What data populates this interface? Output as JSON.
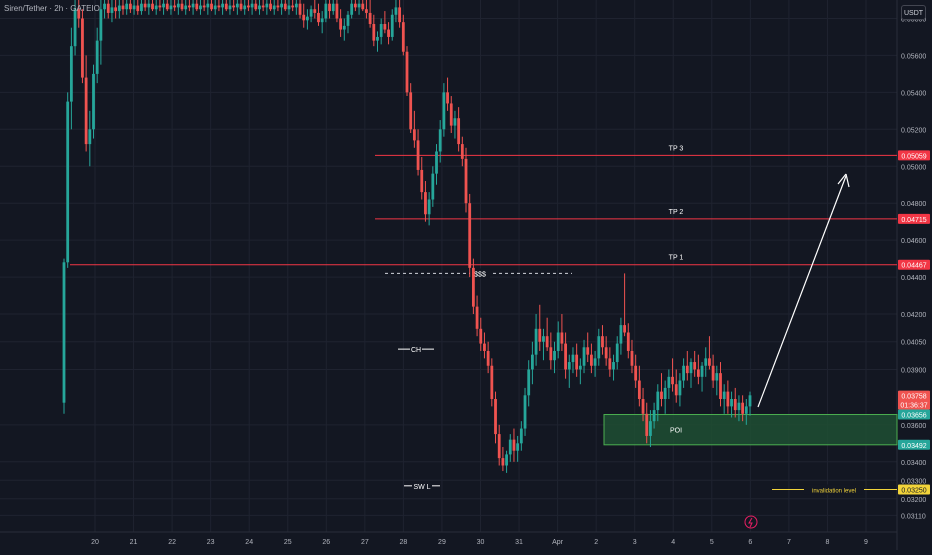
{
  "header": {
    "symbol_title": "Siren/Tether · 2h · GATEIO",
    "currency_label": "USDT"
  },
  "colors": {
    "background": "#131722",
    "grid": "#1f2330",
    "up": "#26a69a",
    "down": "#ef5350",
    "target_line": "#f23645",
    "poi_zone": "#1f4f32",
    "poi_border": "#4caf50",
    "invalidation": "#f2d43a",
    "axis_text": "#b2b5be",
    "arrow": "#ffffff"
  },
  "chart_data": {
    "type": "candlestick",
    "timeframe": "2h",
    "y_axis": {
      "tick_labels": [
        "0.05800",
        "0.05600",
        "0.05400",
        "0.05200",
        "0.05000",
        "0.04800",
        "0.04600",
        "0.04400",
        "0.04200",
        "0.04050",
        "0.03900",
        "0.03600",
        "0.03400",
        "0.03300",
        "0.03200",
        "0.03110"
      ],
      "range": [
        0.0302,
        0.059
      ]
    },
    "x_axis": {
      "tick_labels": [
        "20",
        "21",
        "22",
        "23",
        "24",
        "25",
        "26",
        "27",
        "28",
        "29",
        "30",
        "31",
        "Apr",
        "2",
        "3",
        "4",
        "5",
        "6",
        "7",
        "8",
        "9"
      ]
    },
    "price_levels": [
      {
        "label": "TP 3",
        "price": 0.05059,
        "badge": "0.05059"
      },
      {
        "label": "TP 2",
        "price": 0.04715,
        "badge": "0.04715"
      },
      {
        "label": "TP 1",
        "price": 0.04467,
        "badge": "0.04467"
      }
    ],
    "liquidity": {
      "label": "$$$",
      "price": 0.0442
    },
    "annotations": [
      {
        "label": "CH",
        "price": 0.0401
      },
      {
        "label": "SW L",
        "price": 0.0327
      }
    ],
    "poi_zone": {
      "label": "POI",
      "top": 0.03656,
      "bottom": 0.03492,
      "top_badge": "0.03656",
      "bottom_badge": "0.03492"
    },
    "invalidation": {
      "label": "invalidation level",
      "price": 0.0325,
      "badge": "0.03250"
    },
    "current_price": {
      "price": 0.03758,
      "badge": "0.03758",
      "countdown": "01:36:37"
    },
    "candles": [
      [
        0.0372,
        0.045,
        0.0366,
        0.0448
      ],
      [
        0.0448,
        0.054,
        0.0445,
        0.0535
      ],
      [
        0.0535,
        0.0575,
        0.052,
        0.0565
      ],
      [
        0.0565,
        0.059,
        0.056,
        0.0585
      ],
      [
        0.0585,
        0.059,
        0.0575,
        0.058
      ],
      [
        0.058,
        0.0585,
        0.0545,
        0.0548
      ],
      [
        0.0548,
        0.056,
        0.0508,
        0.0512
      ],
      [
        0.0512,
        0.053,
        0.05,
        0.052
      ],
      [
        0.052,
        0.0555,
        0.0515,
        0.055
      ],
      [
        0.055,
        0.0575,
        0.0545,
        0.0568
      ],
      [
        0.0568,
        0.059,
        0.0555,
        0.0585
      ],
      [
        0.0585,
        0.059,
        0.058,
        0.0588
      ],
      [
        0.0588,
        0.059,
        0.058,
        0.0583
      ],
      [
        0.0583,
        0.059,
        0.0578,
        0.0586
      ],
      [
        0.0586,
        0.059,
        0.058,
        0.0584
      ],
      [
        0.0584,
        0.059,
        0.058,
        0.0587
      ],
      [
        0.0587,
        0.059,
        0.0582,
        0.0585
      ],
      [
        0.0585,
        0.059,
        0.0582,
        0.0588
      ],
      [
        0.0588,
        0.059,
        0.0583,
        0.0585
      ],
      [
        0.0585,
        0.059,
        0.0582,
        0.0587
      ],
      [
        0.0587,
        0.059,
        0.0582,
        0.0584
      ],
      [
        0.0584,
        0.059,
        0.0582,
        0.0588
      ],
      [
        0.0588,
        0.059,
        0.0584,
        0.0586
      ],
      [
        0.0586,
        0.059,
        0.0582,
        0.0588
      ],
      [
        0.0588,
        0.059,
        0.0584,
        0.0585
      ],
      [
        0.0585,
        0.059,
        0.0582,
        0.0587
      ],
      [
        0.0587,
        0.059,
        0.0584,
        0.0586
      ],
      [
        0.0586,
        0.059,
        0.0582,
        0.0588
      ],
      [
        0.0588,
        0.059,
        0.0584,
        0.0585
      ],
      [
        0.0585,
        0.059,
        0.0582,
        0.0587
      ],
      [
        0.0587,
        0.059,
        0.0584,
        0.0586
      ],
      [
        0.0586,
        0.059,
        0.0582,
        0.0588
      ],
      [
        0.0588,
        0.059,
        0.0584,
        0.0585
      ],
      [
        0.0585,
        0.059,
        0.0582,
        0.0587
      ],
      [
        0.0587,
        0.059,
        0.0584,
        0.0586
      ],
      [
        0.0586,
        0.059,
        0.0582,
        0.0588
      ],
      [
        0.0588,
        0.059,
        0.0584,
        0.0585
      ],
      [
        0.0585,
        0.059,
        0.0582,
        0.0587
      ],
      [
        0.0587,
        0.059,
        0.0584,
        0.0586
      ],
      [
        0.0586,
        0.059,
        0.0582,
        0.0588
      ],
      [
        0.0588,
        0.059,
        0.0584,
        0.0585
      ],
      [
        0.0585,
        0.059,
        0.0582,
        0.0587
      ],
      [
        0.0587,
        0.059,
        0.0584,
        0.0586
      ],
      [
        0.0586,
        0.059,
        0.0582,
        0.0588
      ],
      [
        0.0588,
        0.059,
        0.0584,
        0.0585
      ],
      [
        0.0585,
        0.059,
        0.0582,
        0.0587
      ],
      [
        0.0587,
        0.059,
        0.0584,
        0.0586
      ],
      [
        0.0586,
        0.059,
        0.0582,
        0.0588
      ],
      [
        0.0588,
        0.059,
        0.0584,
        0.0585
      ],
      [
        0.0585,
        0.059,
        0.0582,
        0.0587
      ],
      [
        0.0587,
        0.059,
        0.0584,
        0.0586
      ],
      [
        0.0586,
        0.059,
        0.0582,
        0.0588
      ],
      [
        0.0588,
        0.059,
        0.0584,
        0.0585
      ],
      [
        0.0585,
        0.059,
        0.0582,
        0.0587
      ],
      [
        0.0587,
        0.059,
        0.0584,
        0.0586
      ],
      [
        0.0586,
        0.059,
        0.0582,
        0.0588
      ],
      [
        0.0588,
        0.059,
        0.0584,
        0.0585
      ],
      [
        0.0585,
        0.059,
        0.0582,
        0.0587
      ],
      [
        0.0587,
        0.059,
        0.0584,
        0.0586
      ],
      [
        0.0586,
        0.059,
        0.0582,
        0.0588
      ],
      [
        0.0588,
        0.059,
        0.0584,
        0.0585
      ],
      [
        0.0585,
        0.059,
        0.0582,
        0.0587
      ],
      [
        0.0587,
        0.059,
        0.0584,
        0.0586
      ],
      [
        0.0586,
        0.059,
        0.0582,
        0.0588
      ],
      [
        0.0588,
        0.059,
        0.058,
        0.0582
      ],
      [
        0.0582,
        0.0588,
        0.0575,
        0.0579
      ],
      [
        0.0579,
        0.0585,
        0.0574,
        0.0581
      ],
      [
        0.0581,
        0.0587,
        0.0578,
        0.0585
      ],
      [
        0.0585,
        0.059,
        0.058,
        0.0583
      ],
      [
        0.0583,
        0.0588,
        0.0576,
        0.0578
      ],
      [
        0.0578,
        0.0584,
        0.0572,
        0.058
      ],
      [
        0.058,
        0.059,
        0.0578,
        0.0588
      ],
      [
        0.0588,
        0.059,
        0.058,
        0.0584
      ],
      [
        0.0584,
        0.059,
        0.0582,
        0.0588
      ],
      [
        0.0588,
        0.059,
        0.0578,
        0.058
      ],
      [
        0.058,
        0.0585,
        0.057,
        0.0574
      ],
      [
        0.0574,
        0.058,
        0.0568,
        0.0576
      ],
      [
        0.0576,
        0.0584,
        0.0572,
        0.0582
      ],
      [
        0.0582,
        0.059,
        0.058,
        0.0588
      ],
      [
        0.0588,
        0.059,
        0.0584,
        0.0586
      ],
      [
        0.0586,
        0.059,
        0.0582,
        0.0588
      ],
      [
        0.0588,
        0.059,
        0.0584,
        0.0585
      ],
      [
        0.0585,
        0.059,
        0.058,
        0.0583
      ],
      [
        0.0583,
        0.059,
        0.0575,
        0.0577
      ],
      [
        0.0577,
        0.0582,
        0.0565,
        0.0568
      ],
      [
        0.0568,
        0.0573,
        0.0562,
        0.057
      ],
      [
        0.057,
        0.058,
        0.0566,
        0.0577
      ],
      [
        0.0577,
        0.0584,
        0.0572,
        0.0574
      ],
      [
        0.0574,
        0.0578,
        0.0566,
        0.057
      ],
      [
        0.057,
        0.0585,
        0.0568,
        0.0582
      ],
      [
        0.0582,
        0.059,
        0.0578,
        0.0586
      ],
      [
        0.0586,
        0.059,
        0.0575,
        0.0578
      ],
      [
        0.0578,
        0.0582,
        0.056,
        0.0562
      ],
      [
        0.0562,
        0.0565,
        0.0538,
        0.054
      ],
      [
        0.054,
        0.0545,
        0.0518,
        0.052
      ],
      [
        0.052,
        0.053,
        0.051,
        0.0514
      ],
      [
        0.0514,
        0.052,
        0.0495,
        0.0498
      ],
      [
        0.0498,
        0.0505,
        0.0482,
        0.0486
      ],
      [
        0.0486,
        0.0492,
        0.047,
        0.0474
      ],
      [
        0.0474,
        0.0486,
        0.0468,
        0.0482
      ],
      [
        0.0482,
        0.05,
        0.0478,
        0.0496
      ],
      [
        0.0496,
        0.0512,
        0.049,
        0.0508
      ],
      [
        0.0508,
        0.0525,
        0.0502,
        0.052
      ],
      [
        0.052,
        0.0545,
        0.0516,
        0.054
      ],
      [
        0.054,
        0.0548,
        0.053,
        0.0534
      ],
      [
        0.0534,
        0.0538,
        0.0518,
        0.0522
      ],
      [
        0.0522,
        0.053,
        0.0515,
        0.0526
      ],
      [
        0.0526,
        0.0532,
        0.0508,
        0.0512
      ],
      [
        0.0512,
        0.0516,
        0.05,
        0.0504
      ],
      [
        0.0504,
        0.051,
        0.0475,
        0.048
      ],
      [
        0.048,
        0.0485,
        0.044,
        0.0445
      ],
      [
        0.0445,
        0.045,
        0.042,
        0.0424
      ],
      [
        0.0424,
        0.043,
        0.0408,
        0.0412
      ],
      [
        0.0412,
        0.0418,
        0.04,
        0.0404
      ],
      [
        0.0404,
        0.041,
        0.0396,
        0.04
      ],
      [
        0.04,
        0.0405,
        0.0388,
        0.0392
      ],
      [
        0.0392,
        0.0396,
        0.037,
        0.0374
      ],
      [
        0.0374,
        0.0378,
        0.035,
        0.0355
      ],
      [
        0.0355,
        0.036,
        0.0338,
        0.0342
      ],
      [
        0.0342,
        0.0348,
        0.0335,
        0.0338
      ],
      [
        0.0338,
        0.0346,
        0.0334,
        0.0344
      ],
      [
        0.0344,
        0.0355,
        0.034,
        0.0352
      ],
      [
        0.0352,
        0.0358,
        0.034,
        0.0346
      ],
      [
        0.0346,
        0.0354,
        0.034,
        0.035
      ],
      [
        0.035,
        0.0362,
        0.0346,
        0.0358
      ],
      [
        0.0358,
        0.038,
        0.0354,
        0.0376
      ],
      [
        0.0376,
        0.0395,
        0.037,
        0.039
      ],
      [
        0.039,
        0.0405,
        0.0382,
        0.0398
      ],
      [
        0.0398,
        0.042,
        0.0392,
        0.0412
      ],
      [
        0.0412,
        0.0425,
        0.04,
        0.0405
      ],
      [
        0.0405,
        0.0412,
        0.0395,
        0.0408
      ],
      [
        0.0408,
        0.0418,
        0.04,
        0.0402
      ],
      [
        0.0402,
        0.041,
        0.039,
        0.0395
      ],
      [
        0.0395,
        0.0405,
        0.0388,
        0.04
      ],
      [
        0.04,
        0.0416,
        0.0396,
        0.041
      ],
      [
        0.041,
        0.042,
        0.04,
        0.0404
      ],
      [
        0.0404,
        0.041,
        0.0385,
        0.039
      ],
      [
        0.039,
        0.0398,
        0.038,
        0.0394
      ],
      [
        0.0394,
        0.0402,
        0.0388,
        0.0398
      ],
      [
        0.0398,
        0.0404,
        0.0386,
        0.039
      ],
      [
        0.039,
        0.0396,
        0.0382,
        0.0392
      ],
      [
        0.0392,
        0.0406,
        0.0388,
        0.0402
      ],
      [
        0.0402,
        0.041,
        0.0394,
        0.0398
      ],
      [
        0.0398,
        0.0404,
        0.0388,
        0.0392
      ],
      [
        0.0392,
        0.04,
        0.0386,
        0.0396
      ],
      [
        0.0396,
        0.0412,
        0.0392,
        0.0408
      ],
      [
        0.0408,
        0.0414,
        0.0398,
        0.0402
      ],
      [
        0.0402,
        0.0408,
        0.0392,
        0.0396
      ],
      [
        0.0396,
        0.0402,
        0.0386,
        0.039
      ],
      [
        0.039,
        0.0398,
        0.0384,
        0.0394
      ],
      [
        0.0394,
        0.0408,
        0.039,
        0.0404
      ],
      [
        0.0404,
        0.0418,
        0.0398,
        0.0414
      ],
      [
        0.0414,
        0.0442,
        0.0408,
        0.041
      ],
      [
        0.041,
        0.0415,
        0.0396,
        0.04
      ],
      [
        0.04,
        0.0406,
        0.0388,
        0.0392
      ],
      [
        0.0392,
        0.0398,
        0.038,
        0.0384
      ],
      [
        0.0384,
        0.0392,
        0.037,
        0.0374
      ],
      [
        0.0374,
        0.038,
        0.0362,
        0.0366
      ],
      [
        0.0366,
        0.0372,
        0.035,
        0.0354
      ],
      [
        0.0354,
        0.0368,
        0.0348,
        0.0362
      ],
      [
        0.0362,
        0.0372,
        0.0358,
        0.0368
      ],
      [
        0.0368,
        0.0382,
        0.0362,
        0.0378
      ],
      [
        0.0378,
        0.0388,
        0.037,
        0.0374
      ],
      [
        0.0374,
        0.0384,
        0.0366,
        0.038
      ],
      [
        0.038,
        0.039,
        0.0374,
        0.0386
      ],
      [
        0.0386,
        0.0396,
        0.0378,
        0.0382
      ],
      [
        0.0382,
        0.039,
        0.0372,
        0.0376
      ],
      [
        0.0376,
        0.0388,
        0.037,
        0.0384
      ],
      [
        0.0384,
        0.0396,
        0.038,
        0.0392
      ],
      [
        0.0392,
        0.04,
        0.0384,
        0.0388
      ],
      [
        0.0388,
        0.0396,
        0.038,
        0.0394
      ],
      [
        0.0394,
        0.04,
        0.0386,
        0.039
      ],
      [
        0.039,
        0.0398,
        0.0382,
        0.0386
      ],
      [
        0.0386,
        0.0394,
        0.0378,
        0.0392
      ],
      [
        0.0392,
        0.0402,
        0.0386,
        0.0396
      ],
      [
        0.0396,
        0.0408,
        0.039,
        0.0392
      ],
      [
        0.0392,
        0.0398,
        0.038,
        0.0384
      ],
      [
        0.0384,
        0.0392,
        0.0376,
        0.0388
      ],
      [
        0.0388,
        0.0394,
        0.037,
        0.0374
      ],
      [
        0.0374,
        0.0382,
        0.0366,
        0.0378
      ],
      [
        0.0378,
        0.0384,
        0.0366,
        0.037
      ],
      [
        0.037,
        0.0378,
        0.0364,
        0.0374
      ],
      [
        0.0374,
        0.038,
        0.0364,
        0.0368
      ],
      [
        0.0368,
        0.0376,
        0.0362,
        0.0372
      ],
      [
        0.0372,
        0.0376,
        0.0362,
        0.0366
      ],
      [
        0.0366,
        0.0374,
        0.036,
        0.037
      ],
      [
        0.037,
        0.0378,
        0.0365,
        0.0376
      ]
    ]
  }
}
